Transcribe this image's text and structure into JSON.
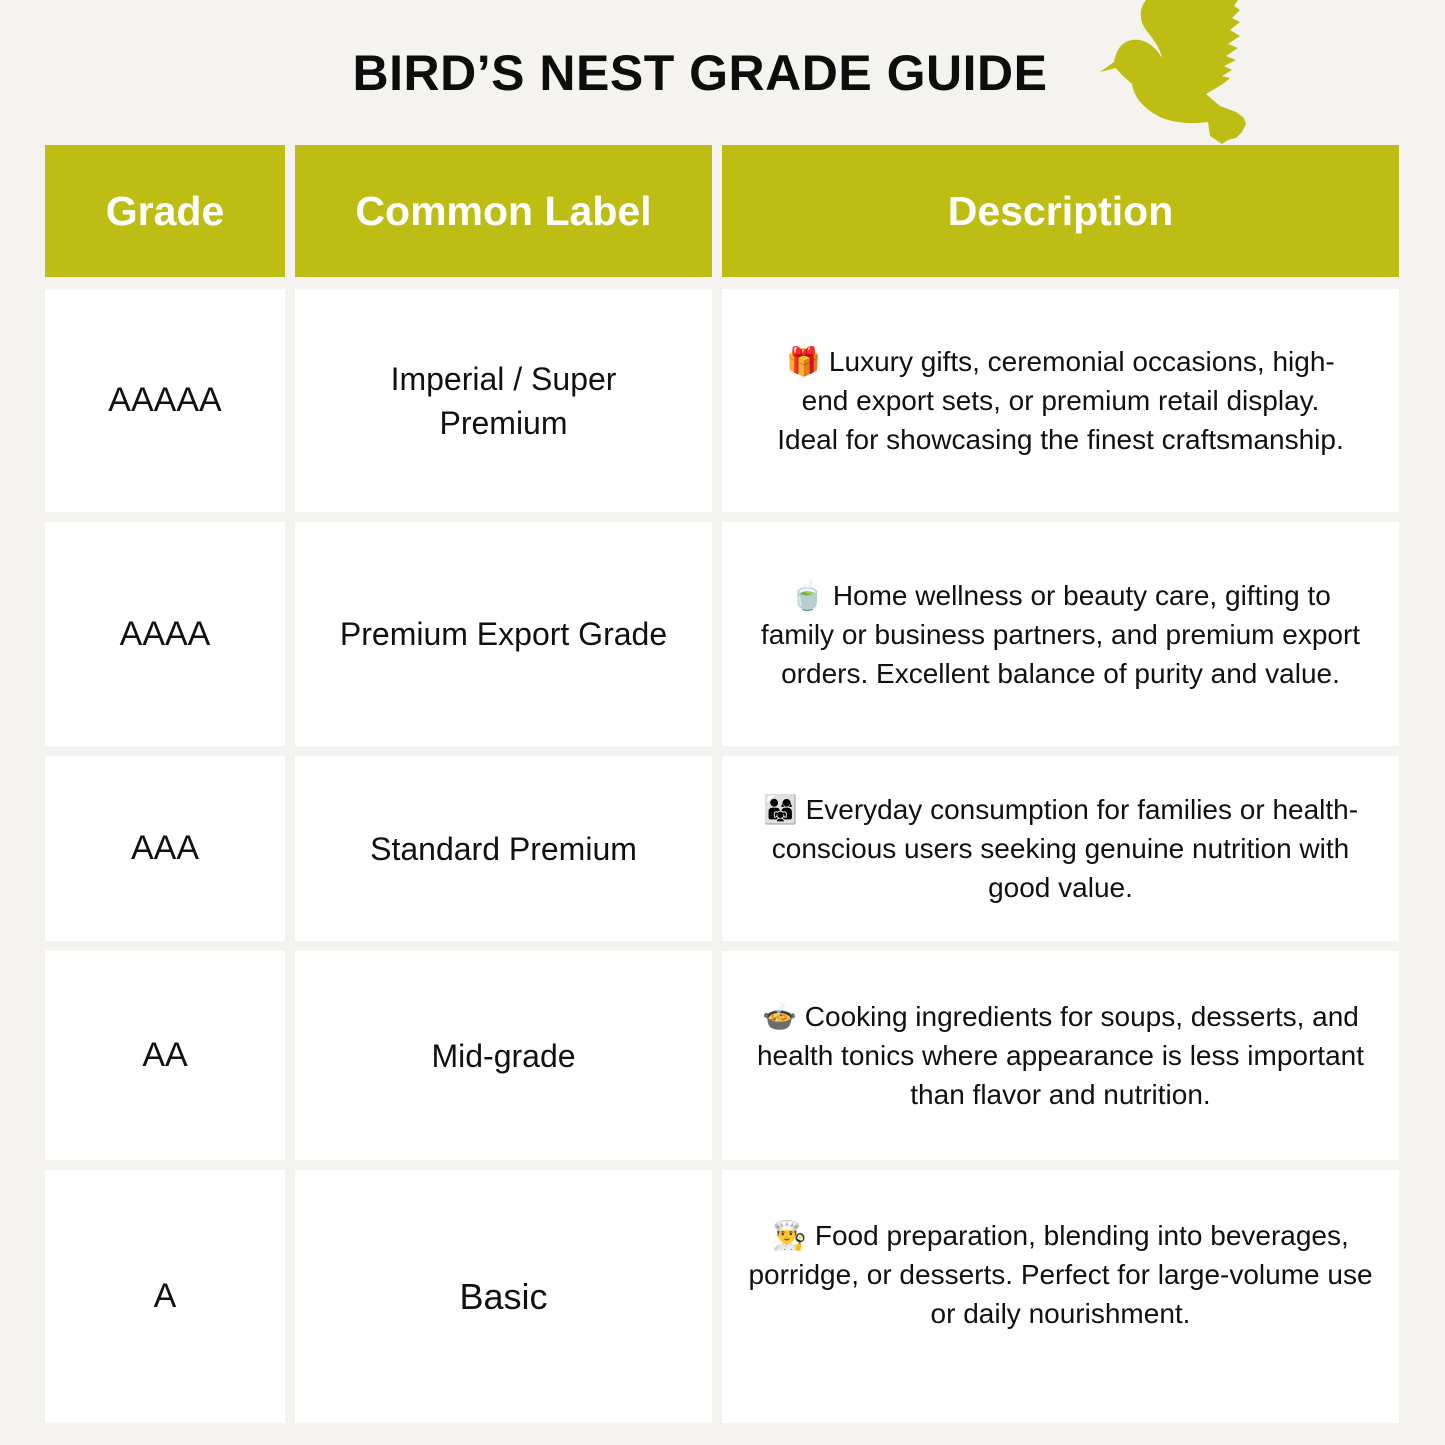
{
  "title": "BIRD’S NEST GRADE GUIDE",
  "colors": {
    "accent": "#bdbd14",
    "background": "#f5f3ef",
    "cell": "#ffffff"
  },
  "icons": {
    "logo": "dove-icon"
  },
  "headers": [
    "Grade",
    "Common Label",
    "Description"
  ],
  "rows": [
    {
      "grade": "AAAAA",
      "label": "Imperial / Super Premium",
      "emoji": "🎁",
      "description": "Luxury gifts, ceremonial occasions, high-end export sets, or premium retail display. Ideal for showcasing the finest craftsmanship."
    },
    {
      "grade": "AAAA",
      "label": "Premium Export Grade",
      "emoji": "🍵",
      "description": "Home wellness or beauty care, gifting to family or business partners, and premium export orders. Excellent balance of purity and value."
    },
    {
      "grade": "AAA",
      "label": "Standard Premium",
      "emoji": "👨‍👩‍👧",
      "description": "Everyday consumption for families or health-conscious users seeking genuine nutrition with good value."
    },
    {
      "grade": "AA",
      "label": "Mid-grade",
      "emoji": "🍲",
      "description": "Cooking ingredients for soups, desserts, and health tonics where appearance is less important than flavor and nutrition."
    },
    {
      "grade": "A",
      "label": "Basic",
      "emoji": "👨‍🍳",
      "description": "Food preparation, blending into beverages, porridge, or desserts. Perfect for large-volume use or daily nourishment."
    }
  ]
}
